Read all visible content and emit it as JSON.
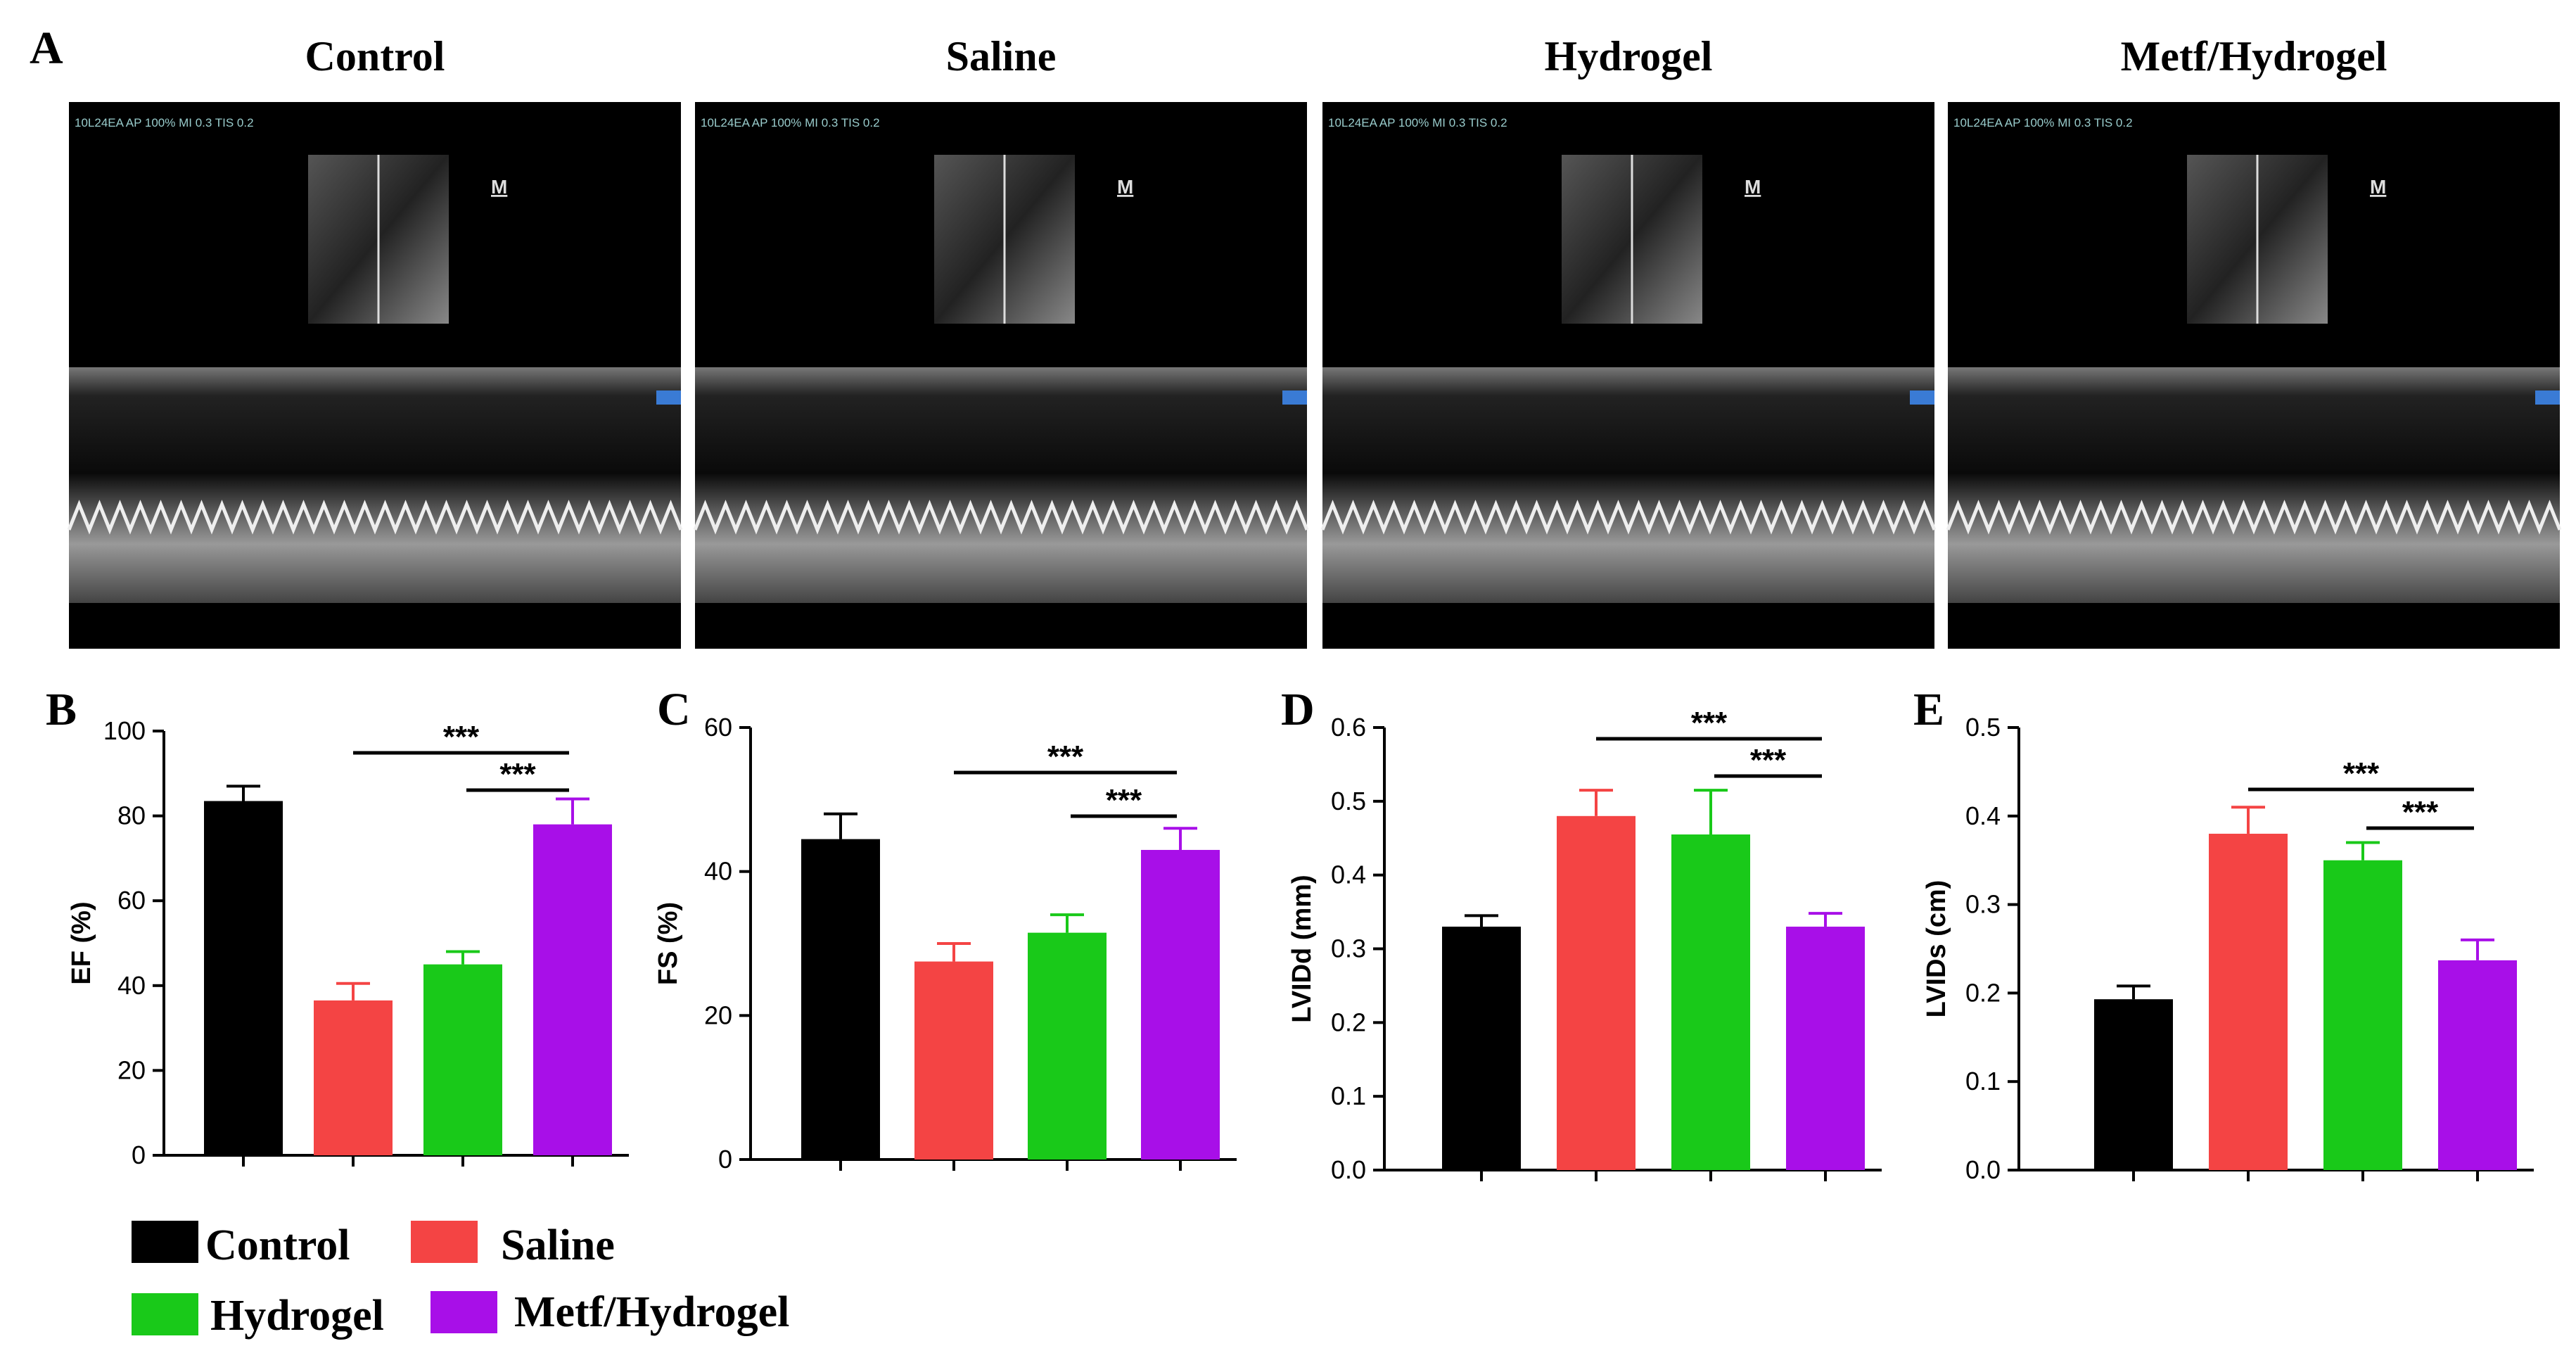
{
  "panel_a": {
    "label": "A",
    "images": [
      {
        "title": "Control",
        "overlay": "10L24EA AP 100% MI 0.3 TIS 0.2",
        "marker": "M"
      },
      {
        "title": "Saline",
        "overlay": "10L24EA AP 100% MI 0.3 TIS 0.2",
        "marker": "M"
      },
      {
        "title": "Hydrogel",
        "overlay": "10L24EA AP 100% MI 0.3 TIS 0.2",
        "marker": "M"
      },
      {
        "title": "Metf/Hydrogel",
        "overlay": "10L24EA AP 100% MI 0.3 TIS 0.2",
        "marker": "M"
      }
    ]
  },
  "chart_data": [
    {
      "type": "bar",
      "panel_label": "B",
      "y_label": "EF (%)",
      "categories": [
        null,
        null,
        null,
        null
      ],
      "values": [
        83.5,
        36.5,
        45,
        78
      ],
      "errors": [
        3.5,
        4,
        3,
        6
      ],
      "colors": [
        "#000000",
        "#f44444",
        "#19c919",
        "#a80fe8"
      ],
      "ylim": [
        0,
        100
      ],
      "yticks": [
        0,
        20,
        40,
        60,
        80,
        100
      ],
      "comparisons": [
        {
          "text": "***",
          "between": [
            1,
            3
          ]
        },
        {
          "text": "***",
          "between": [
            2,
            3
          ]
        }
      ]
    },
    {
      "type": "bar",
      "panel_label": "C",
      "y_label": "FS (%)",
      "categories": [
        null,
        null,
        null,
        null
      ],
      "values": [
        44.5,
        27.5,
        31.5,
        43
      ],
      "errors": [
        3.5,
        2.5,
        2.5,
        3
      ],
      "colors": [
        "#000000",
        "#f44444",
        "#19c919",
        "#a80fe8"
      ],
      "ylim": [
        0,
        60
      ],
      "yticks": [
        0,
        20,
        40,
        60
      ],
      "comparisons": [
        {
          "text": "***",
          "between": [
            1,
            3
          ]
        },
        {
          "text": "***",
          "between": [
            2,
            3
          ]
        }
      ]
    },
    {
      "type": "bar",
      "panel_label": "D",
      "y_label": "LVIDd (mm)",
      "categories": [
        null,
        null,
        null,
        null
      ],
      "values": [
        0.33,
        0.48,
        0.455,
        0.33
      ],
      "errors": [
        0.015,
        0.035,
        0.06,
        0.018
      ],
      "colors": [
        "#000000",
        "#f44444",
        "#19c919",
        "#a80fe8"
      ],
      "ylim": [
        0,
        0.6
      ],
      "yticks": [
        {
          "value": 0,
          "label": "0.0"
        },
        0.1,
        0.2,
        0.3,
        0.4,
        0.5,
        0.6
      ],
      "comparisons": [
        {
          "text": "***",
          "between": [
            1,
            3
          ]
        },
        {
          "text": "***",
          "between": [
            2,
            3
          ]
        }
      ]
    },
    {
      "type": "bar",
      "panel_label": "E",
      "y_label": "LVIDs (cm)",
      "categories": [
        null,
        null,
        null,
        null
      ],
      "values": [
        0.193,
        0.38,
        0.35,
        0.237
      ],
      "errors": [
        0.015,
        0.03,
        0.02,
        0.023
      ],
      "colors": [
        "#000000",
        "#f44444",
        "#19c919",
        "#a80fe8"
      ],
      "ylim": [
        0,
        0.5
      ],
      "yticks": [
        {
          "value": 0,
          "label": "0.0"
        },
        0.1,
        0.2,
        0.3,
        0.4,
        0.5
      ],
      "comparisons": [
        {
          "text": "***",
          "between": [
            1,
            3
          ]
        },
        {
          "text": "***",
          "between": [
            2,
            3
          ]
        }
      ]
    }
  ],
  "legend": [
    {
      "name": "Control",
      "color": "#000000"
    },
    {
      "name": "Saline",
      "color": "#f44444"
    },
    {
      "name": "Hydrogel",
      "color": "#19c919"
    },
    {
      "name": "Metf/Hydrogel",
      "color": "#a80fe8"
    }
  ]
}
